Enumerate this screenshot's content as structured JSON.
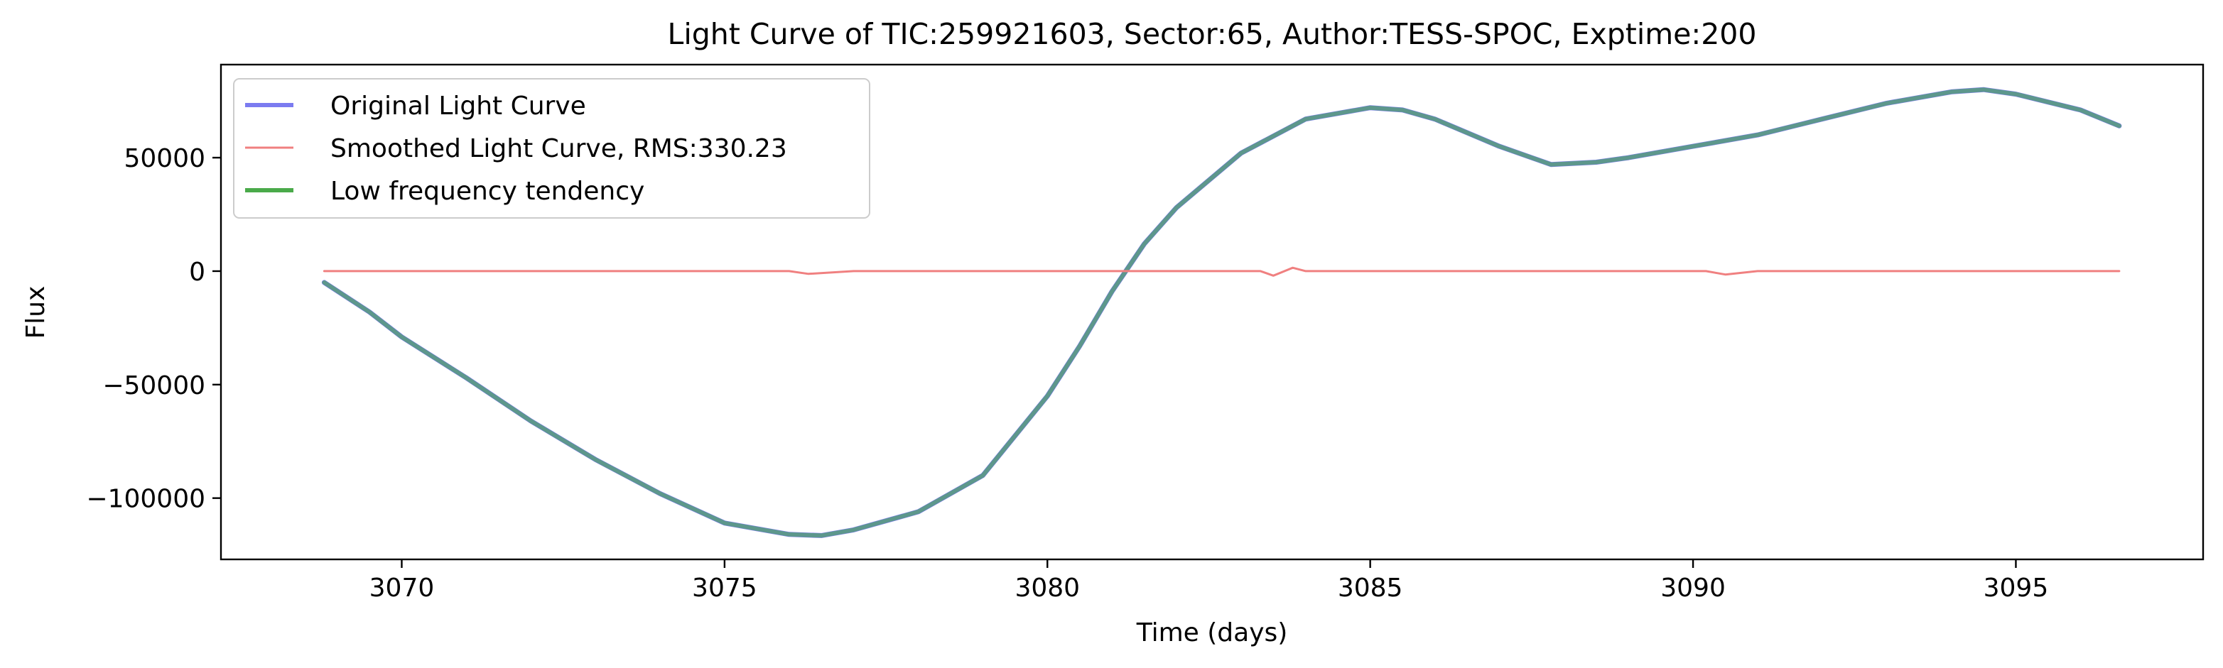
{
  "chart_data": {
    "type": "line",
    "title": "Light Curve of TIC:259921603, Sector:65, Author:TESS-SPOC, Exptime:200",
    "xlabel": "Time (days)",
    "ylabel": "Flux",
    "xlim": [
      3067.2,
      3097.9
    ],
    "ylim": [
      -127000,
      91000
    ],
    "x_ticks": [
      3070,
      3075,
      3080,
      3085,
      3090,
      3095
    ],
    "x_tick_labels": [
      "3070",
      "3075",
      "3080",
      "3085",
      "3090",
      "3095"
    ],
    "y_ticks": [
      -100000,
      -50000,
      0,
      50000
    ],
    "y_tick_labels": [
      "−100000",
      "−50000",
      "0",
      "50000"
    ],
    "grid": false,
    "legend_position": "top-left",
    "series": [
      {
        "name": "Original Light Curve",
        "color": "#7b7bf0",
        "x": [
          3068.8,
          3069.5,
          3070.0,
          3071.0,
          3072.0,
          3073.0,
          3074.0,
          3075.0,
          3076.0,
          3076.5,
          3077.0,
          3078.0,
          3079.0,
          3080.0,
          3080.5,
          3081.0,
          3081.5,
          3082.0,
          3083.0,
          3084.0,
          3085.0,
          3085.5,
          3086.0,
          3087.0,
          3087.8,
          3088.5,
          3089.0,
          3090.0,
          3091.0,
          3092.0,
          3093.0,
          3094.0,
          3094.5,
          3095.0,
          3096.0,
          3096.6
        ],
        "y": [
          -5000,
          -18000,
          -29000,
          -47000,
          -66000,
          -83000,
          -98000,
          -111000,
          -116000,
          -116500,
          -114000,
          -106000,
          -90000,
          -55000,
          -33000,
          -9000,
          12000,
          28000,
          52000,
          67000,
          72000,
          71000,
          67000,
          55000,
          47000,
          48000,
          50000,
          55000,
          60000,
          67000,
          74000,
          79000,
          80000,
          78000,
          71000,
          64000
        ]
      },
      {
        "name": "Smoothed Light Curve, RMS:330.23",
        "color": "#f08080",
        "x": [
          3068.8,
          3073.0,
          3076.0,
          3076.3,
          3077.0,
          3080.0,
          3083.3,
          3083.5,
          3083.8,
          3084.0,
          3087.0,
          3090.2,
          3090.5,
          3091.0,
          3094.0,
          3096.6
        ],
        "y": [
          0,
          0,
          0,
          -1200,
          0,
          0,
          0,
          -2000,
          1500,
          0,
          0,
          0,
          -1500,
          0,
          0,
          0
        ]
      },
      {
        "name": "Low frequency tendency",
        "color": "#4aaa4a",
        "x": [
          3068.8,
          3069.5,
          3070.0,
          3071.0,
          3072.0,
          3073.0,
          3074.0,
          3075.0,
          3076.0,
          3076.5,
          3077.0,
          3078.0,
          3079.0,
          3080.0,
          3080.5,
          3081.0,
          3081.5,
          3082.0,
          3083.0,
          3084.0,
          3085.0,
          3085.5,
          3086.0,
          3087.0,
          3087.8,
          3088.5,
          3089.0,
          3090.0,
          3091.0,
          3092.0,
          3093.0,
          3094.0,
          3094.5,
          3095.0,
          3096.0,
          3096.6
        ],
        "y": [
          -5000,
          -18000,
          -29000,
          -47000,
          -66000,
          -83000,
          -98000,
          -111000,
          -116000,
          -116500,
          -114000,
          -106000,
          -90000,
          -55000,
          -33000,
          -9000,
          12000,
          28000,
          52000,
          67000,
          72000,
          71000,
          67000,
          55000,
          47000,
          48000,
          50000,
          55000,
          60000,
          67000,
          74000,
          79000,
          80000,
          78000,
          71000,
          64000
        ]
      }
    ]
  }
}
